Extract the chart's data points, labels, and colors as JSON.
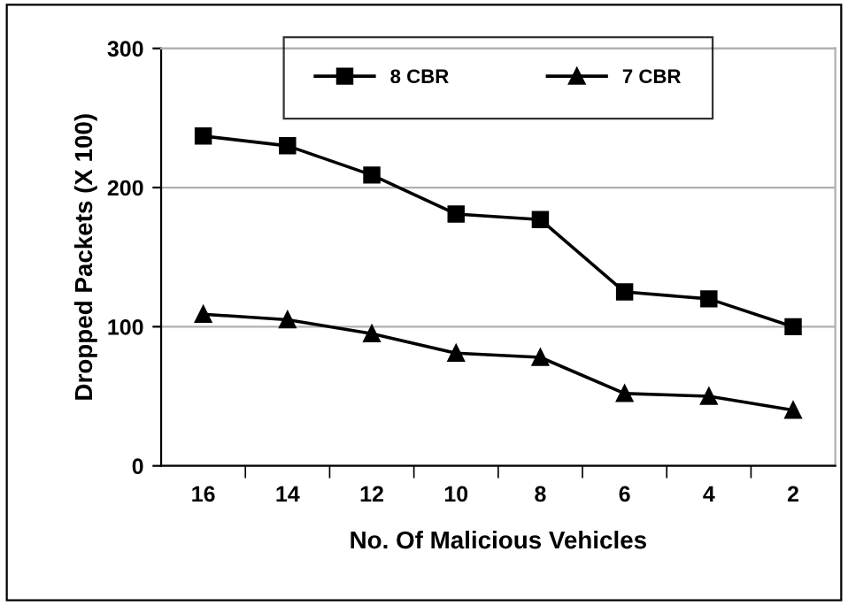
{
  "chart_data": {
    "type": "line",
    "xlabel": "No. Of Malicious Vehicles",
    "ylabel": "Dropped Packets (X 100)",
    "categories": [
      "16",
      "14",
      "12",
      "10",
      "8",
      "6",
      "4",
      "2"
    ],
    "series": [
      {
        "name": "8 CBR",
        "color": "#000000",
        "marker": "square",
        "values": [
          237,
          230,
          209,
          181,
          177,
          125,
          120,
          100
        ]
      },
      {
        "name": "7 CBR",
        "color": "#000000",
        "marker": "triangle",
        "values": [
          109,
          105,
          95,
          81,
          78,
          52,
          50,
          40
        ]
      }
    ],
    "ylim": [
      0,
      300
    ],
    "yticks": [
      0,
      100,
      200,
      300
    ],
    "grid": "y",
    "legend": "top",
    "line_style": "solid"
  }
}
